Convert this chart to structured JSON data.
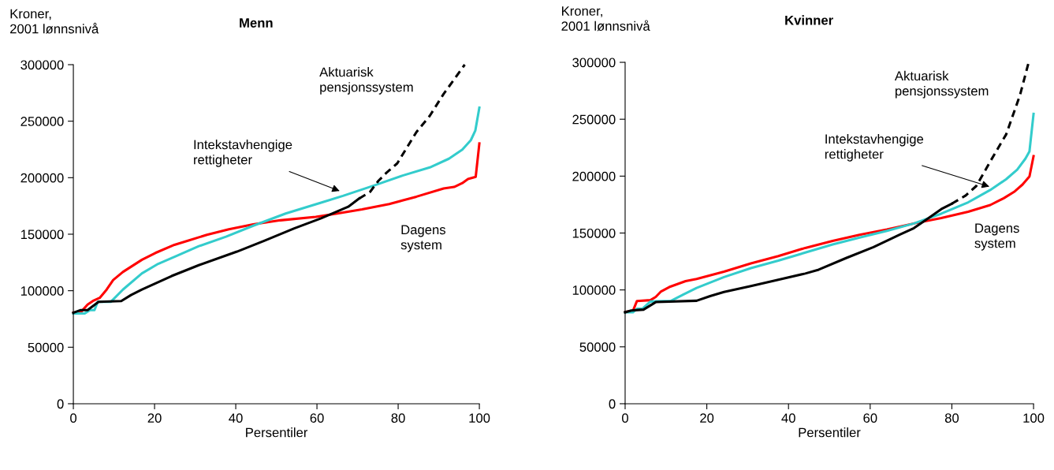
{
  "chart_data": [
    {
      "type": "line",
      "title": "Menn",
      "ylabel": "Kroner,\n2001 lønnsnivå",
      "xlabel": "Persentiler",
      "xlim": [
        0,
        100
      ],
      "xticks": [
        0,
        20,
        40,
        60,
        80,
        100
      ],
      "ylim": [
        0,
        300000
      ],
      "yticks": [
        0,
        50000,
        100000,
        150000,
        200000,
        250000,
        300000
      ],
      "grid": false,
      "marker": "none",
      "series": [
        {
          "name": "Dagens\nsystem",
          "color": "#ff0000",
          "line_style": "solid",
          "x": [
            0,
            2,
            3.5,
            4.8,
            6.5,
            8.2,
            9.8,
            12.2,
            16.9,
            20.2,
            24.9,
            28.2,
            32.9,
            38.3,
            44.3,
            51,
            59.7,
            65,
            71.1,
            77.8,
            84.5,
            91.2,
            93.8,
            95.8,
            97.2,
            99.1,
            100
          ],
          "values": [
            80500,
            81700,
            87700,
            90900,
            93700,
            101000,
            109400,
            116600,
            127400,
            133400,
            140600,
            144200,
            149500,
            154300,
            158700,
            162300,
            165400,
            168300,
            171900,
            176700,
            183200,
            190400,
            191800,
            195200,
            198800,
            200700,
            230300
          ]
        },
        {
          "color": "#33cccc",
          "line_style": "solid",
          "x": [
            0,
            2.8,
            4.1,
            5.2,
            6,
            9.2,
            12.2,
            16.9,
            20.9,
            25.6,
            30.9,
            37.6,
            44.3,
            52.3,
            61,
            66.4,
            74.4,
            81.1,
            87.8,
            92.5,
            95.8,
            97.9,
            99,
            100
          ],
          "values": [
            79800,
            79800,
            82900,
            82900,
            90100,
            90100,
            101000,
            115400,
            123800,
            131000,
            139400,
            147800,
            157500,
            168300,
            177900,
            183900,
            193500,
            201900,
            209100,
            216800,
            224800,
            233200,
            241600,
            262000
          ]
        },
        {
          "color": "#000000",
          "line_style": "solid",
          "x": [
            0,
            1.8,
            3.5,
            6.2,
            11.8,
            14.2,
            16.9,
            24.2,
            30.9,
            40.3,
            47,
            54.4,
            61,
            67.7,
            70.4
          ],
          "values": [
            80500,
            82900,
            82900,
            90100,
            90900,
            96200,
            101000,
            113000,
            122600,
            134600,
            144200,
            155100,
            164000,
            174300,
            181600
          ]
        },
        {
          "name": "Aktuarisk\npensjonssystem",
          "color": "#000000",
          "line_style": "dashed",
          "x": [
            70.4,
            73.1,
            75.1,
            77.1,
            79.8,
            84.5,
            87.8,
            91.2,
            96.4
          ],
          "values": [
            181600,
            187500,
            197100,
            204300,
            212800,
            240400,
            254800,
            274100,
            300000
          ]
        }
      ],
      "annotations": [
        {
          "text": "Intekstavhengige\nrettigheter",
          "x": 66.1,
          "y": 187500
        }
      ]
    },
    {
      "type": "line",
      "title": "Kvinner",
      "ylabel": "Kroner,\n2001 lønnsnivå",
      "xlabel": "Persentiler",
      "xlim": [
        0,
        100
      ],
      "xticks": [
        0,
        20,
        40,
        60,
        80,
        100
      ],
      "ylim": [
        0,
        300000
      ],
      "yticks": [
        0,
        50000,
        100000,
        150000,
        200000,
        250000,
        300000
      ],
      "grid": false,
      "marker": "none",
      "series": [
        {
          "name": "Dagens\nsystem",
          "color": "#ff0000",
          "line_style": "solid",
          "x": [
            0,
            1.9,
            2.9,
            6.2,
            7.5,
            8.8,
            10.8,
            14.8,
            17.5,
            24.2,
            30.8,
            37.5,
            44.1,
            50.8,
            57.4,
            64.1,
            70.7,
            77.4,
            84,
            89.4,
            92.7,
            95.4,
            97.3,
            99,
            100
          ],
          "values": [
            80700,
            81500,
            90300,
            91000,
            93900,
            98700,
            102500,
            107700,
            109700,
            116100,
            123300,
            129700,
            136900,
            143100,
            148400,
            153100,
            158400,
            163200,
            168700,
            174600,
            180600,
            186600,
            192600,
            199700,
            217600
          ]
        },
        {
          "color": "#33cccc",
          "line_style": "solid",
          "x": [
            0,
            1.9,
            2.9,
            4.2,
            6.2,
            11.2,
            14.2,
            17.5,
            24.2,
            30.8,
            37.5,
            44.1,
            50.8,
            57.4,
            64.1,
            70.7,
            77.4,
            84,
            89.4,
            93.3,
            96,
            98,
            99,
            100
          ],
          "values": [
            80300,
            80300,
            83400,
            83400,
            89800,
            90300,
            95800,
            101800,
            111300,
            119200,
            125700,
            132800,
            140000,
            146000,
            151900,
            158400,
            167000,
            177000,
            187800,
            197300,
            205700,
            215300,
            221700,
            254700
          ]
        },
        {
          "color": "#000000",
          "line_style": "solid",
          "x": [
            0,
            1.5,
            4.5,
            7.5,
            17.5,
            20.8,
            24.2,
            30.8,
            37.5,
            44.1,
            47.4,
            54.1,
            60.8,
            67.4,
            70.7,
            74.1,
            77.4,
            80
          ],
          "values": [
            80300,
            81900,
            82700,
            89300,
            90500,
            94600,
            98200,
            103400,
            108900,
            114400,
            117800,
            128000,
            137600,
            148800,
            154300,
            162700,
            171000,
            175800
          ]
        },
        {
          "name": "Aktuarisk\npensjonssystem",
          "color": "#000000",
          "line_style": "dashed",
          "x": [
            80,
            83.4,
            86,
            89.4,
            93.3,
            96.7,
            98.8
          ],
          "values": [
            175800,
            183000,
            191400,
            212900,
            236700,
            271400,
            300000
          ]
        }
      ],
      "annotations": [
        {
          "text": "Intekstavhengige\nrettigheter",
          "x": 89.7,
          "y": 190200
        }
      ]
    }
  ]
}
